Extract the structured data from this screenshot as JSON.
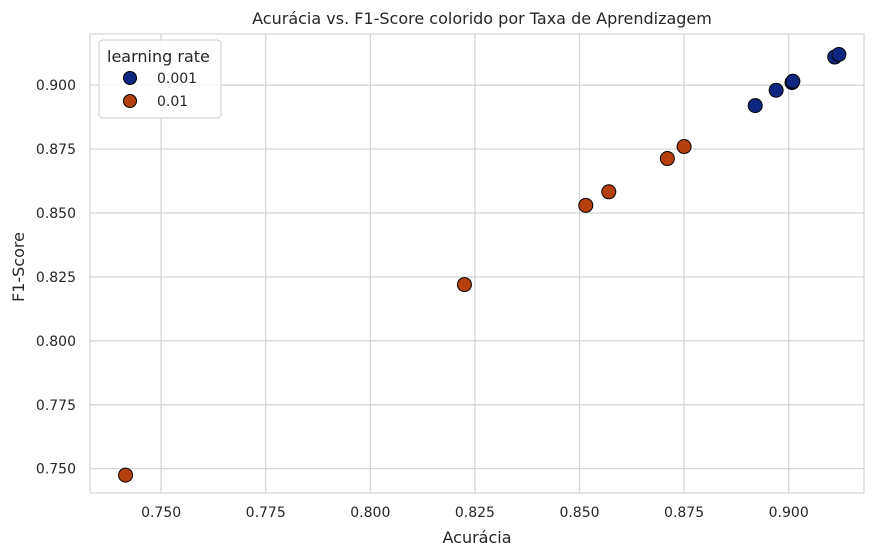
{
  "chart_data": {
    "type": "scatter",
    "title": "Acurácia vs. F1-Score colorido por Taxa de Aprendizagem",
    "xlabel": "Acurácia",
    "ylabel": "F1-Score",
    "xlim": [
      0.733,
      0.918
    ],
    "ylim": [
      0.7405,
      0.92
    ],
    "xticks": [
      "0.750",
      "0.775",
      "0.800",
      "0.825",
      "0.850",
      "0.875",
      "0.900"
    ],
    "yticks": [
      "0.750",
      "0.775",
      "0.800",
      "0.825",
      "0.850",
      "0.875",
      "0.900"
    ],
    "grid": true,
    "legend": {
      "title": "learning rate",
      "placement": "top-left"
    },
    "series": [
      {
        "name": "0.001",
        "color": "#0d2680",
        "x": [
          0.892,
          0.897,
          0.9008,
          0.901,
          0.911,
          0.912
        ],
        "y": [
          0.892,
          0.898,
          0.901,
          0.9015,
          0.911,
          0.912
        ]
      },
      {
        "name": "0.01",
        "color": "#b5400e",
        "x": [
          0.7415,
          0.8225,
          0.8515,
          0.857,
          0.871,
          0.875
        ],
        "y": [
          0.7475,
          0.822,
          0.853,
          0.8583,
          0.8713,
          0.876
        ]
      }
    ]
  }
}
